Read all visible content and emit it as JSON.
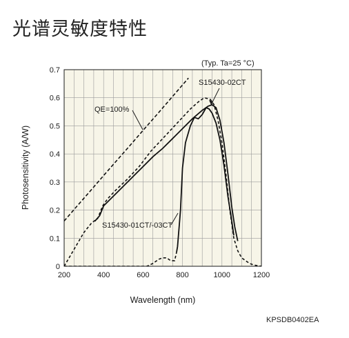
{
  "header": {
    "title": "光谱灵敏度特性"
  },
  "footer": {
    "doc_code": "KPSDB0402EA"
  },
  "chart_data": {
    "type": "line",
    "title": "光谱灵敏度特性",
    "xlabel": "Wavelength (nm)",
    "ylabel": "Photosensitivity (A/W)",
    "xlim": [
      200,
      1200
    ],
    "ylim": [
      0,
      0.7
    ],
    "xticks": [
      200,
      400,
      600,
      800,
      1000,
      1200
    ],
    "yticks": [
      0,
      0.1,
      0.2,
      0.3,
      0.4,
      0.5,
      0.6,
      0.7
    ],
    "ytick_labels": [
      "0",
      "0.1",
      "0.2",
      "0.3",
      "0.4",
      "0.5",
      "0.6",
      "0.7"
    ],
    "grid": true,
    "conditions": "(Typ. Ta=25 °C)",
    "series": [
      {
        "name": "QE=100%",
        "style": "dashed",
        "color": "#111111",
        "x": [
          200,
          265,
          330,
          400,
          470,
          540,
          610,
          680,
          750,
          830
        ],
        "y": [
          0.161,
          0.214,
          0.266,
          0.323,
          0.379,
          0.435,
          0.492,
          0.548,
          0.605,
          0.67
        ]
      },
      {
        "name": "S15430-02CT",
        "style": "solid",
        "color": "#111111",
        "x": [
          200,
          250,
          300,
          340,
          370,
          395,
          420,
          460,
          520,
          580,
          640,
          700,
          760,
          800,
          840,
          880,
          910,
          940,
          960,
          980,
          1000,
          1020,
          1040,
          1060,
          1080,
          1100,
          1120,
          1140,
          1160,
          1180,
          1200
        ],
        "y": [
          0.0,
          0.06,
          0.12,
          0.155,
          0.17,
          0.215,
          0.24,
          0.27,
          0.31,
          0.355,
          0.41,
          0.455,
          0.5,
          0.53,
          0.56,
          0.585,
          0.6,
          0.595,
          0.575,
          0.52,
          0.44,
          0.33,
          0.2,
          0.1,
          0.055,
          0.03,
          0.02,
          0.01,
          0.005,
          0.002,
          0.0
        ],
        "x_solid": [
          355,
          380,
          400,
          450,
          500,
          550,
          600,
          650,
          700,
          750,
          800,
          850,
          900,
          930,
          950,
          970,
          990,
          1010,
          1030,
          1050,
          1065,
          1080
        ],
        "y_solid": [
          0.16,
          0.18,
          0.215,
          0.25,
          0.285,
          0.32,
          0.355,
          0.39,
          0.42,
          0.455,
          0.49,
          0.525,
          0.555,
          0.57,
          0.575,
          0.565,
          0.52,
          0.44,
          0.33,
          0.21,
          0.14,
          0.09
        ]
      },
      {
        "name": "S15430-01CT/-03CT",
        "style": "mixed",
        "color": "#111111",
        "x": [
          200,
          620,
          650,
          680,
          700,
          720,
          740,
          760,
          770,
          775,
          790,
          800,
          815,
          840,
          860,
          880,
          900,
          920,
          935,
          950,
          970,
          990,
          1010,
          1030,
          1050,
          1060
        ],
        "y": [
          0.0,
          0.0,
          0.01,
          0.025,
          0.03,
          0.03,
          0.02,
          0.02,
          0.05,
          0.07,
          0.2,
          0.35,
          0.44,
          0.5,
          0.53,
          0.525,
          0.54,
          0.565,
          0.56,
          0.545,
          0.51,
          0.45,
          0.36,
          0.25,
          0.16,
          0.11
        ]
      }
    ],
    "annotations": [
      {
        "text": "QE=100%"
      },
      {
        "text": "S15430-02CT"
      },
      {
        "text": "S15430-01CT/-03CT"
      }
    ]
  }
}
